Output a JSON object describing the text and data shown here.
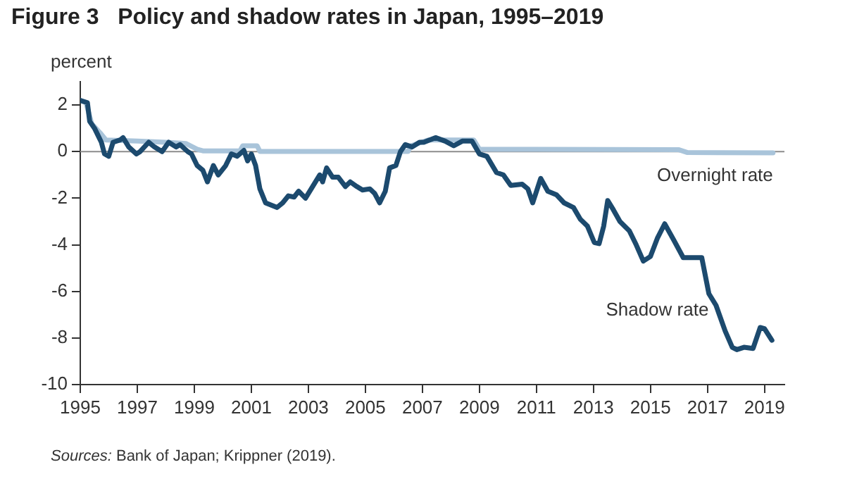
{
  "chart_data": {
    "type": "line",
    "title": "Figure 3   Policy and shadow rates in Japan, 1995–2019",
    "ylabel": "percent",
    "annotations": [
      "Sources: Bank of Japan; Krippner (2019)."
    ],
    "xlim": [
      1995,
      2019.7
    ],
    "xticks": [
      1995,
      1997,
      1999,
      2001,
      2003,
      2005,
      2007,
      2009,
      2011,
      2013,
      2015,
      2017,
      2019
    ],
    "ylim": [
      -10,
      3
    ],
    "yticks": [
      -10,
      -8,
      -6,
      -4,
      -2,
      0,
      2
    ],
    "grid": false,
    "legend": false,
    "marker": "none",
    "line_style": "solid",
    "ref_lines": [
      {
        "axis": "y",
        "value": 0,
        "color": "#8c8c8c"
      }
    ],
    "series": [
      {
        "name": "Overnight rate",
        "color": "#a9c4da",
        "x": [
          1995.0,
          1995.2,
          1995.4,
          1995.7,
          1995.9,
          1997.0,
          1998.0,
          1998.7,
          1999.1,
          1999.3,
          2000.6,
          2000.7,
          2001.2,
          2001.3,
          2006.5,
          2006.6,
          2007.2,
          2008.8,
          2009.0,
          2016.0,
          2016.3,
          2019.3
        ],
        "values": [
          2.2,
          2.1,
          1.2,
          0.8,
          0.5,
          0.45,
          0.4,
          0.35,
          0.1,
          0.03,
          0.03,
          0.25,
          0.25,
          0.01,
          0.01,
          0.25,
          0.5,
          0.5,
          0.1,
          0.08,
          -0.04,
          -0.05
        ]
      },
      {
        "name": "Shadow rate",
        "color": "#1c4a6e",
        "x": [
          1995.0,
          1995.25,
          1995.33,
          1995.5,
          1995.66,
          1995.74,
          1995.85,
          1996.0,
          1996.15,
          1996.4,
          1996.5,
          1996.7,
          1996.97,
          1997.1,
          1997.4,
          1997.6,
          1997.87,
          1998.1,
          1998.36,
          1998.5,
          1998.77,
          1998.9,
          1999.1,
          1999.3,
          1999.46,
          1999.67,
          1999.84,
          2000.1,
          2000.3,
          2000.5,
          2000.74,
          2000.87,
          2001.0,
          2001.15,
          2001.3,
          2001.5,
          2001.7,
          2001.9,
          2002.1,
          2002.3,
          2002.5,
          2002.66,
          2002.9,
          2003.15,
          2003.4,
          2003.5,
          2003.64,
          2003.85,
          2004.05,
          2004.3,
          2004.47,
          2004.7,
          2004.9,
          2005.16,
          2005.33,
          2005.5,
          2005.7,
          2005.85,
          2006.07,
          2006.23,
          2006.4,
          2006.64,
          2006.9,
          2007.05,
          2007.46,
          2007.8,
          2008.1,
          2008.4,
          2008.74,
          2009.0,
          2009.26,
          2009.6,
          2009.84,
          2010.1,
          2010.5,
          2010.7,
          2010.87,
          2011.15,
          2011.4,
          2011.7,
          2011.97,
          2012.3,
          2012.54,
          2012.79,
          2013.03,
          2013.2,
          2013.36,
          2013.5,
          2013.7,
          2013.93,
          2014.26,
          2014.5,
          2014.75,
          2015.0,
          2015.25,
          2015.5,
          2015.82,
          2016.15,
          2016.8,
          2017.05,
          2017.3,
          2017.62,
          2017.87,
          2018.03,
          2018.28,
          2018.6,
          2018.85,
          2019.0,
          2019.26
        ],
        "values": [
          2.2,
          2.1,
          1.3,
          1.0,
          0.6,
          0.4,
          -0.1,
          -0.2,
          0.4,
          0.5,
          0.6,
          0.2,
          -0.1,
          0,
          0.4,
          0.2,
          0,
          0.4,
          0.2,
          0.3,
          0,
          -0.1,
          -0.6,
          -0.8,
          -1.3,
          -0.6,
          -1.0,
          -0.6,
          -0.1,
          -0.2,
          0.05,
          -0.4,
          -0.1,
          -0.6,
          -1.6,
          -2.2,
          -2.3,
          -2.4,
          -2.2,
          -1.9,
          -1.95,
          -1.7,
          -2.0,
          -1.5,
          -1.0,
          -1.3,
          -0.7,
          -1.1,
          -1.1,
          -1.5,
          -1.3,
          -1.5,
          -1.65,
          -1.6,
          -1.8,
          -2.2,
          -1.7,
          -0.7,
          -0.6,
          0,
          0.3,
          0.2,
          0.4,
          0.4,
          0.6,
          0.45,
          0.25,
          0.45,
          0.45,
          -0.1,
          -0.2,
          -0.9,
          -1.0,
          -1.45,
          -1.4,
          -1.6,
          -2.2,
          -1.15,
          -1.7,
          -1.85,
          -2.2,
          -2.4,
          -2.9,
          -3.2,
          -3.9,
          -3.95,
          -3.2,
          -2.1,
          -2.5,
          -3.0,
          -3.4,
          -4.0,
          -4.7,
          -4.5,
          -3.7,
          -3.1,
          -3.8,
          -4.55,
          -4.55,
          -6.1,
          -6.6,
          -7.7,
          -8.4,
          -8.5,
          -8.4,
          -8.45,
          -7.55,
          -7.6,
          -8.1
        ]
      }
    ]
  }
}
